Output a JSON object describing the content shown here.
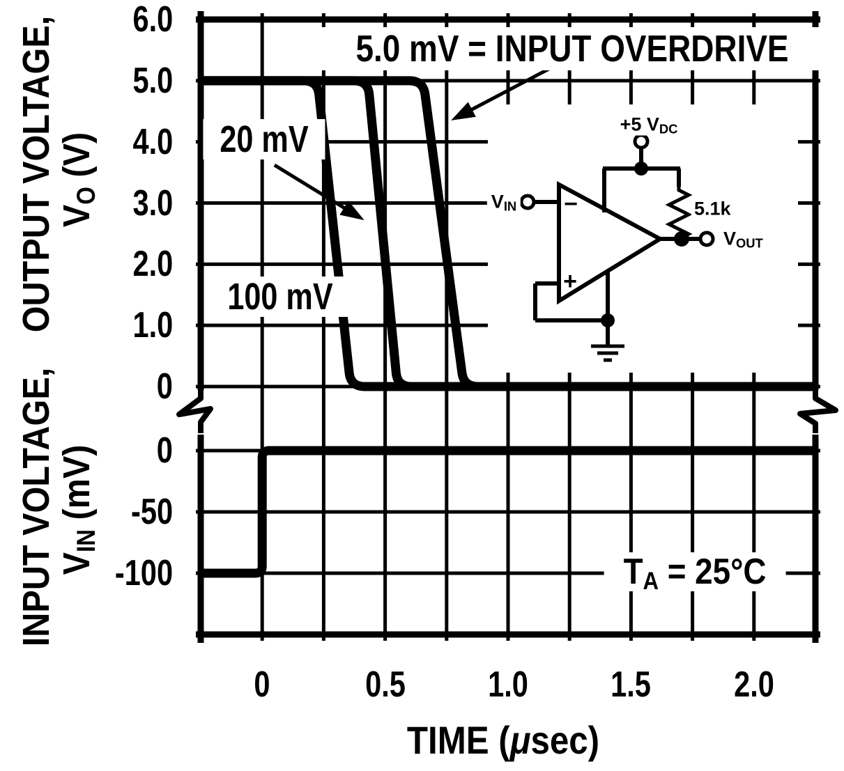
{
  "chart_data": {
    "type": "line",
    "title": "5.0 mV = INPUT OVERDRIVE",
    "xlabel": "TIME (μsec)",
    "x_range": [
      -0.25,
      2.25
    ],
    "x_gridline_step": 0.25,
    "grid": "on",
    "x_ticks": [
      {
        "v": 0,
        "label": "0"
      },
      {
        "v": 0.5,
        "label": "0.5"
      },
      {
        "v": 1.0,
        "label": "1.0"
      },
      {
        "v": 1.5,
        "label": "1.5"
      },
      {
        "v": 2.0,
        "label": "2.0"
      }
    ],
    "panels": [
      {
        "name": "output",
        "ylabel": "OUTPUT VOLTAGE, VO (V)",
        "y_range": [
          0,
          6
        ],
        "y_ticks": [
          {
            "v": 6,
            "label": "6.0"
          },
          {
            "v": 5,
            "label": "5.0"
          },
          {
            "v": 4,
            "label": "4.0"
          },
          {
            "v": 3,
            "label": "3.0"
          },
          {
            "v": 2,
            "label": "2.0"
          },
          {
            "v": 1,
            "label": "1.0"
          },
          {
            "v": 0,
            "label": "0"
          }
        ],
        "series": [
          {
            "name": "100 mV overdrive",
            "points": [
              [
                -0.25,
                5
              ],
              [
                0.225,
                5
              ],
              [
                0.36,
                0
              ],
              [
                2.25,
                0
              ]
            ]
          },
          {
            "name": "20 mV overdrive",
            "points": [
              [
                -0.25,
                5
              ],
              [
                0.43,
                5
              ],
              [
                0.55,
                0
              ],
              [
                2.25,
                0
              ]
            ]
          },
          {
            "name": "5.0 mV overdrive",
            "points": [
              [
                -0.25,
                5
              ],
              [
                0.655,
                5
              ],
              [
                0.82,
                0
              ],
              [
                2.25,
                0
              ]
            ]
          }
        ]
      },
      {
        "name": "input",
        "ylabel": "INPUT VOLTAGE, VIN (mV)",
        "y_range": [
          -150,
          0
        ],
        "y_ticks": [
          {
            "v": 0,
            "label": "0"
          },
          {
            "v": -50,
            "label": "-50"
          },
          {
            "v": -100,
            "label": "-100"
          }
        ],
        "series": [
          {
            "name": "input step",
            "points": [
              [
                -0.25,
                -100
              ],
              [
                0,
                -100
              ],
              [
                0,
                0
              ],
              [
                2.25,
                0
              ]
            ]
          }
        ]
      }
    ],
    "arrows": [
      {
        "for": "5.0 mV overdrive",
        "from_t": 1.17,
        "from_v": 5.2,
        "to_t": 0.768,
        "to_v": 4.35
      },
      {
        "for": "20 mV overdrive",
        "from_t": 0.05,
        "from_v": 3.62,
        "to_t": 0.415,
        "to_v": 2.72
      }
    ],
    "annotations": [
      "5.0 mV = INPUT OVERDRIVE",
      "20 mV",
      "100 mV",
      "TA = 25°C"
    ]
  },
  "labels": {
    "title": "5.0 mV = INPUT OVERDRIVE",
    "overdrive_20": "20 mV",
    "overdrive_100": "100 mV",
    "temp": {
      "main": "T",
      "sub": "A",
      "rest": " = 25°C"
    },
    "x_axis": {
      "pre": "TIME (",
      "mu": "μ",
      "rest": "sec)"
    },
    "y_top_line1": "OUTPUT VOLTAGE,",
    "y_top_line2": {
      "main": "V",
      "sub": "O",
      "rest": " (V)"
    },
    "y_bot_line1": "INPUT VOLTAGE,",
    "y_bot_line2": {
      "main": "V",
      "sub": "IN",
      "rest": " (mV)"
    }
  },
  "circuit": {
    "supply": {
      "main": "+5 V",
      "sub": "DC"
    },
    "resistor_value": "5.1k",
    "vin": {
      "main": "V",
      "sub": "IN"
    },
    "vout": {
      "main": "V",
      "sub": "OUT"
    },
    "minus_input": "−",
    "plus_input": "+"
  },
  "colors": {
    "ink": "#000000",
    "paper": "#ffffff"
  }
}
